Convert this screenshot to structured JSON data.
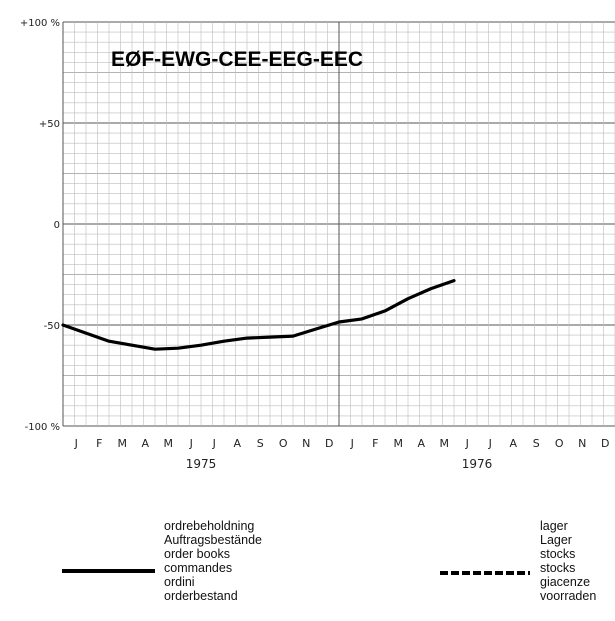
{
  "chart_data": {
    "type": "line",
    "title": "EØF-EWG-CEE-EEG-EEC",
    "y_tick_labels": [
      "+100 %",
      "+50",
      "0",
      "-50",
      "-100 %"
    ],
    "y_tick_values": [
      100,
      50,
      0,
      -50,
      -100
    ],
    "ylim": [
      -100,
      100
    ],
    "month_labels": [
      "J",
      "F",
      "M",
      "A",
      "M",
      "J",
      "J",
      "A",
      "S",
      "O",
      "N",
      "D",
      "J",
      "F",
      "M",
      "A",
      "M",
      "J",
      "J",
      "A",
      "S",
      "O",
      "N",
      "D"
    ],
    "years": [
      "1975",
      "1976"
    ],
    "grid": true,
    "series": [
      {
        "name": "",
        "style": "solid",
        "color": "#000000",
        "x": [
          0,
          1,
          2,
          3,
          4,
          5,
          6,
          7,
          8,
          9,
          10,
          11,
          12,
          13,
          14,
          15,
          16,
          17
        ],
        "values": [
          -50,
          -54,
          -58,
          -60,
          -62,
          -61.5,
          -60,
          -58,
          -56.5,
          -56,
          -55.5,
          -52,
          -48.5,
          -47,
          -43,
          -37,
          -32,
          -28
        ]
      }
    ]
  },
  "legend": {
    "solid_labels": [
      "ordrebeholdning",
      "Auftragsbestände",
      "order books",
      "commandes",
      "ordini",
      "orderbestand"
    ],
    "dashed_labels": [
      "lager",
      "Lager",
      "stocks",
      "stocks",
      "giacenze",
      "voorraden"
    ]
  }
}
